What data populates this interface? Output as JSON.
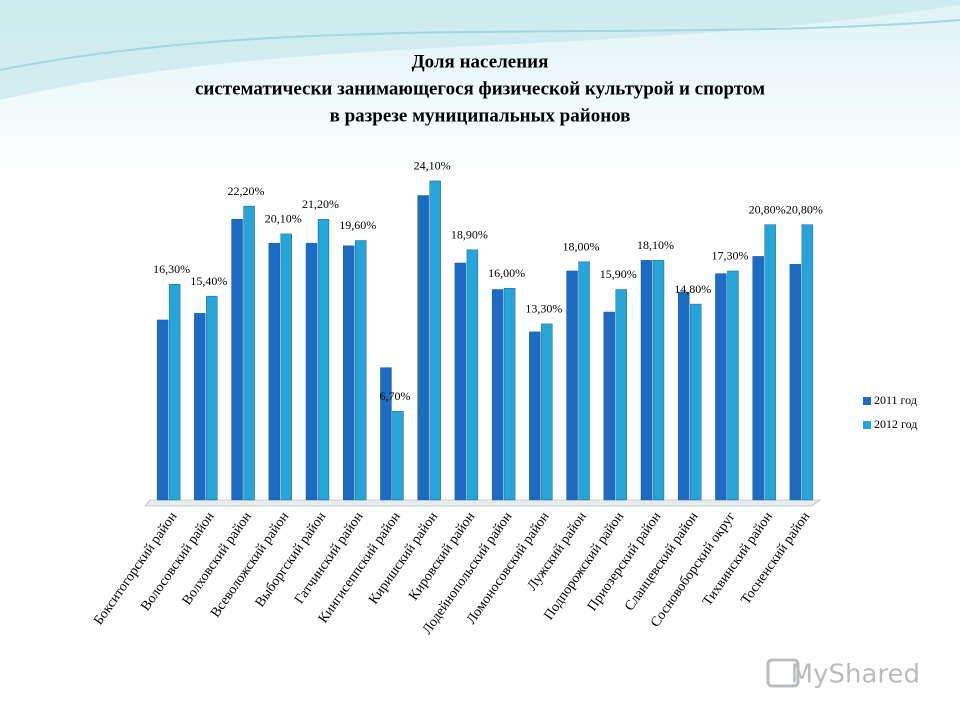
{
  "chart_data": {
    "type": "bar",
    "title": [
      "Доля населения",
      "систематически занимающегося физической культурой и спортом",
      "в разрезе муниципальных районов"
    ],
    "categories": [
      "Бокситогорский район",
      "Волосовский район",
      "Волховский район",
      "Всеволожский район",
      "Выборгский район",
      "Гатчинский район",
      "Кингисеппский район",
      "Киришский район",
      "Кировский район",
      "Лодейнопольский район",
      "Ломоносовский район",
      "Лужский район",
      "Подпорожский район",
      "Приозерский район",
      "Сланцевский район",
      "Сосновоборский округ",
      "Тихвинский район",
      "Тосненский район"
    ],
    "series": [
      {
        "name": "2011 год",
        "color": "#1c6cc4",
        "values": [
          13.6,
          14.1,
          21.2,
          19.4,
          19.4,
          19.2,
          10.0,
          23.0,
          17.9,
          15.9,
          12.7,
          17.3,
          14.2,
          18.1,
          15.7,
          17.1,
          18.4,
          17.8
        ]
      },
      {
        "name": "2012 год",
        "color": "#27a4d8",
        "values": [
          16.3,
          15.4,
          22.2,
          20.1,
          21.2,
          19.6,
          6.7,
          24.1,
          18.9,
          16.0,
          13.3,
          18.0,
          15.9,
          18.1,
          14.8,
          17.3,
          20.8,
          20.8
        ],
        "value_labels": [
          "16,30%",
          "15,40%",
          "22,20%",
          "20,10%",
          "21,20%",
          "19,60%",
          "6,70%",
          "24,10%",
          "18,90%",
          "16,00%",
          "13,30%",
          "18,00%",
          "15,90%",
          "18,10%",
          "14,80%",
          "17,30%",
          "20,80%",
          "20,80%"
        ]
      }
    ],
    "ylim": [
      0,
      25
    ],
    "legend": "right"
  },
  "watermark": "MyShared"
}
